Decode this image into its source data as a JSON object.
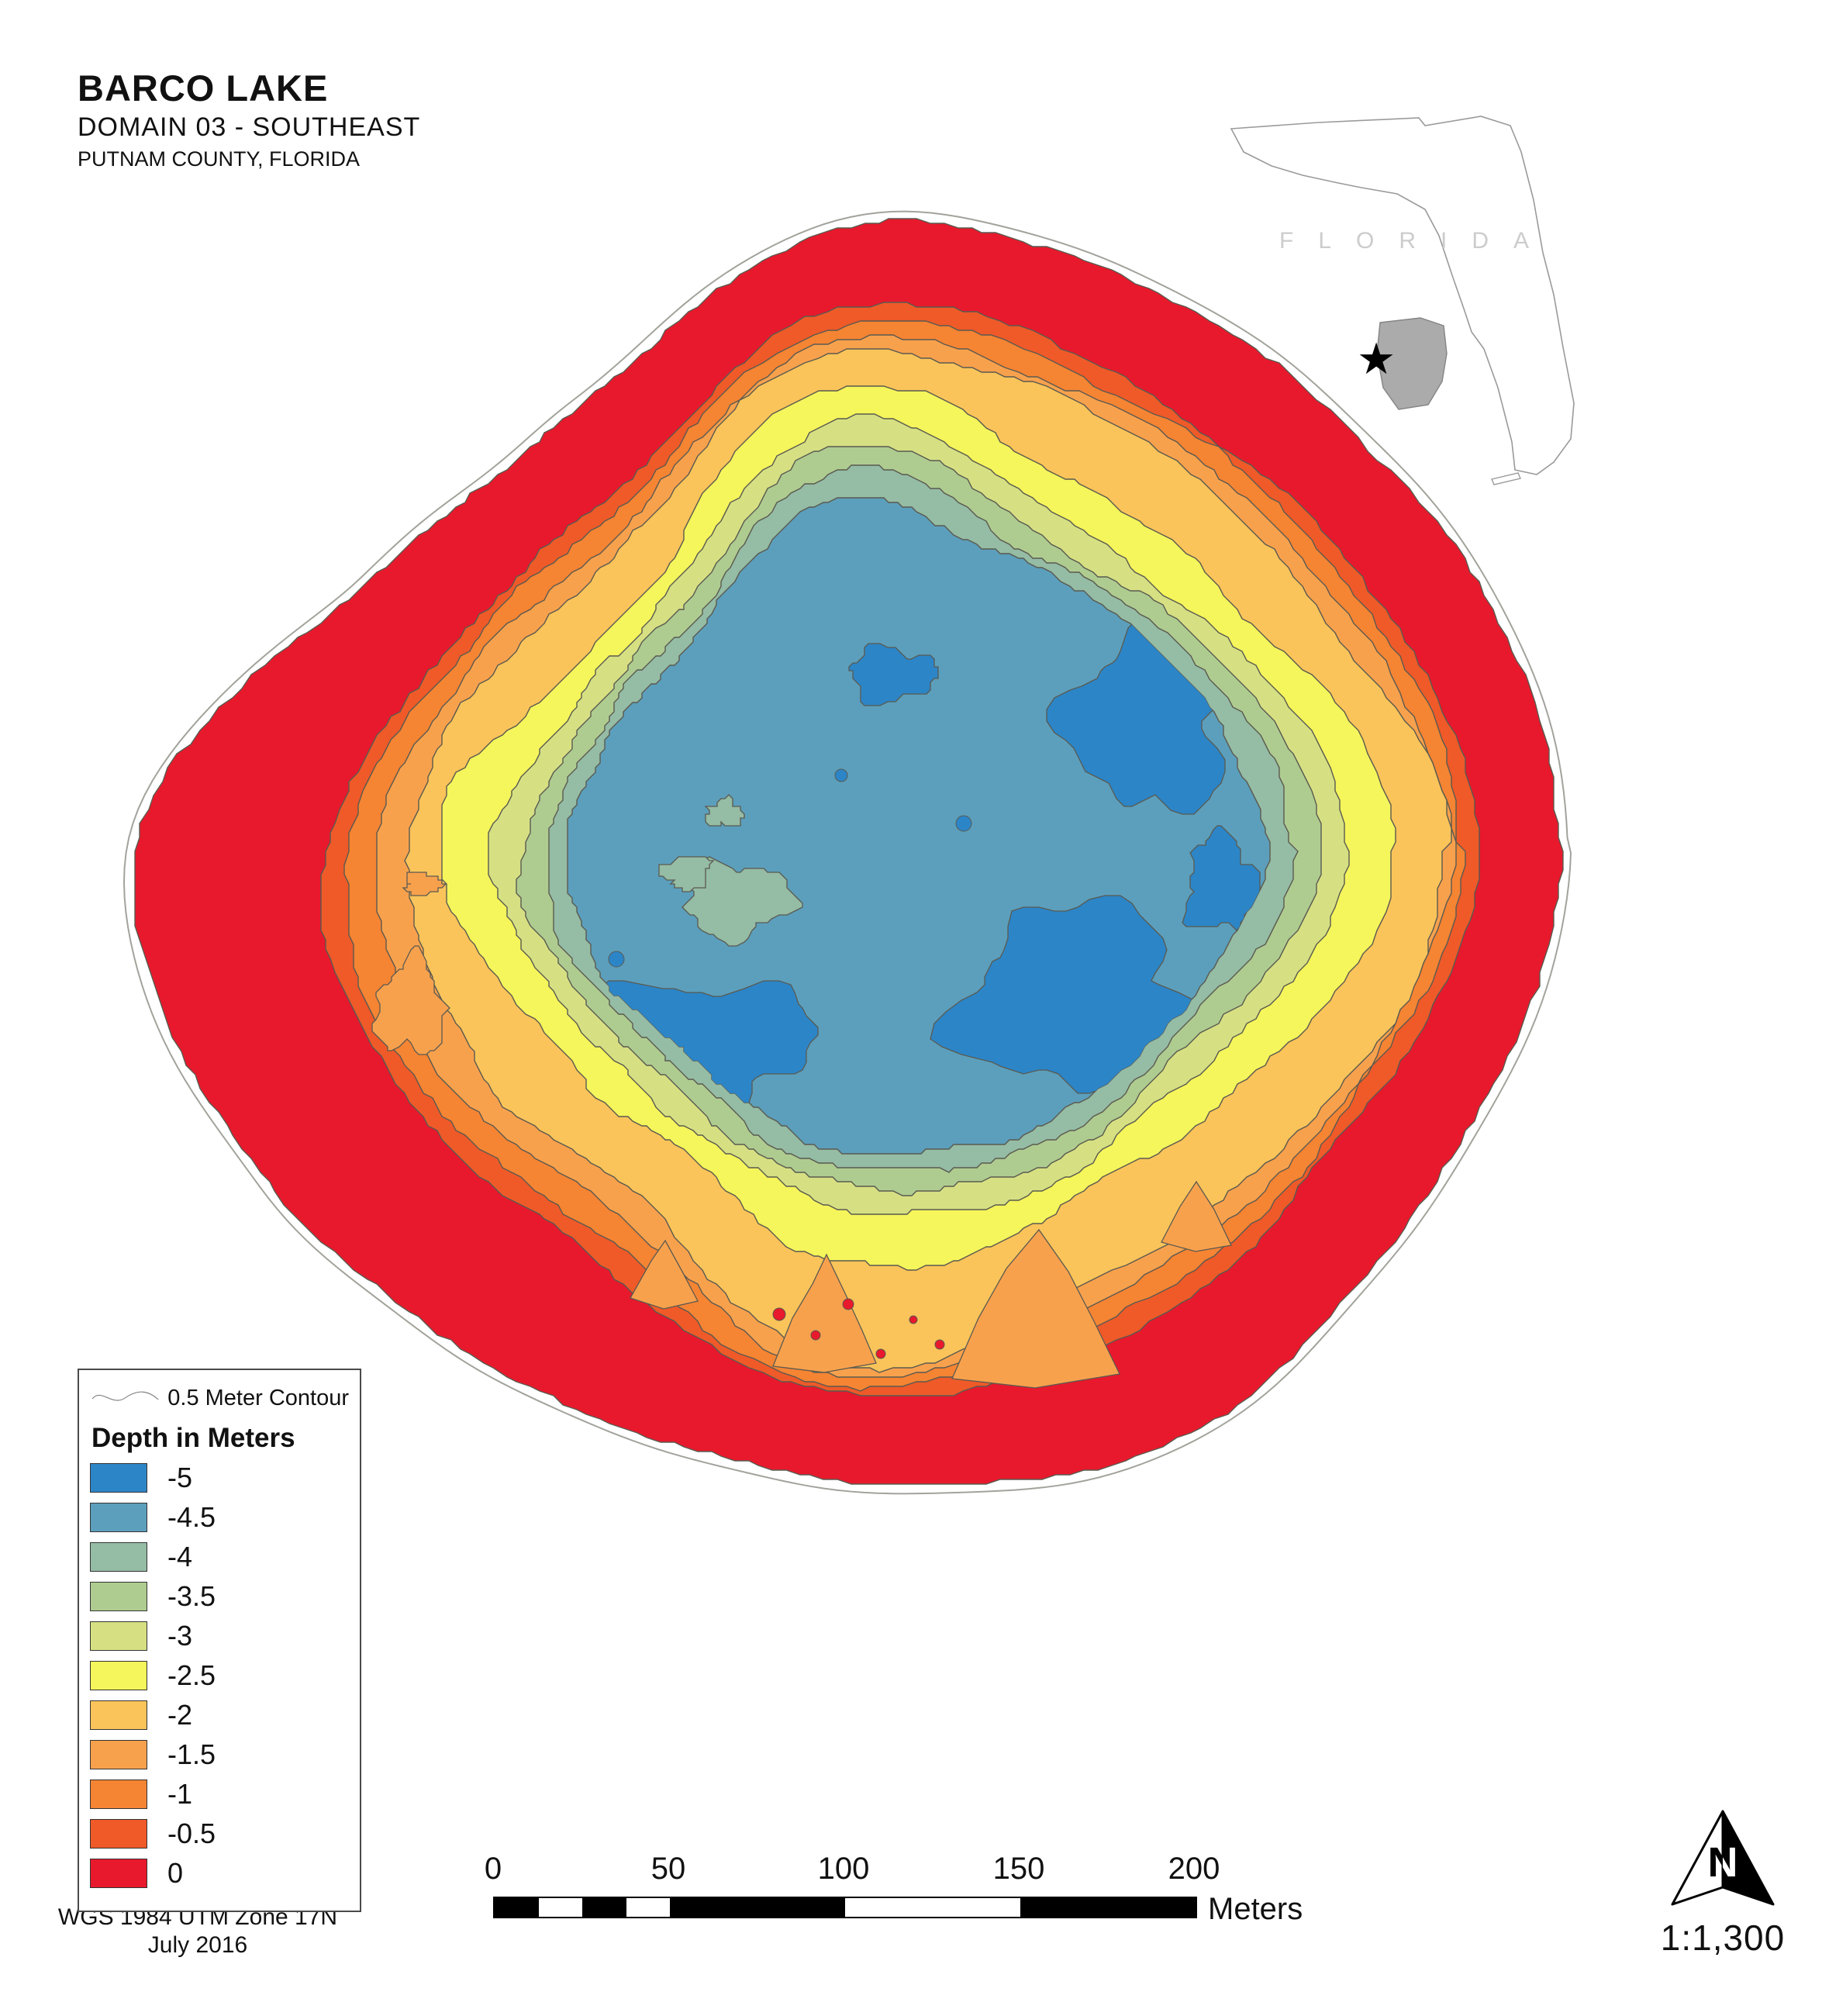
{
  "header": {
    "title": "BARCO LAKE",
    "subtitle": "DOMAIN 03 - SOUTHEAST",
    "location": "PUTNAM COUNTY, FLORIDA"
  },
  "inset": {
    "state_label": "FLORIDA",
    "marker": "star-icon",
    "county_color": "#ababab"
  },
  "legend": {
    "contour_label": "0.5 Meter Contour",
    "depth_header": "Depth in Meters",
    "entries": [
      {
        "label": "-5",
        "color": "#2C85C7"
      },
      {
        "label": "-4.5",
        "color": "#5C9FBC"
      },
      {
        "label": "-4",
        "color": "#95BCA4"
      },
      {
        "label": "-3.5",
        "color": "#AFCC90"
      },
      {
        "label": "-3",
        "color": "#D6E083"
      },
      {
        "label": "-2.5",
        "color": "#F5F55C"
      },
      {
        "label": "-2",
        "color": "#FAC45A"
      },
      {
        "label": "-1.5",
        "color": "#F8A14D"
      },
      {
        "label": "-1",
        "color": "#F58433"
      },
      {
        "label": "-0.5",
        "color": "#EF5A28"
      },
      {
        "label": "0",
        "color": "#E8192C"
      }
    ]
  },
  "scalebar": {
    "ticks": [
      "0",
      "50",
      "100",
      "150",
      "200"
    ],
    "unit": "Meters"
  },
  "footer": {
    "datum": "WGS 1984 UTM Zone 17N",
    "date": "July 2016",
    "north_label": "N",
    "scale_ratio": "1:1,300"
  }
}
